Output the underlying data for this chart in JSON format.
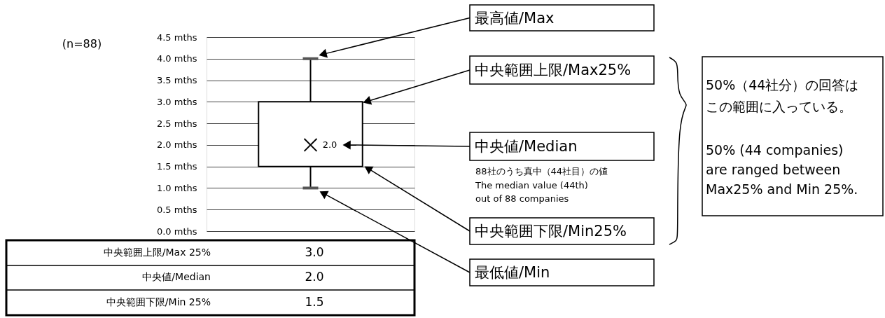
{
  "chart_data": {
    "type": "box",
    "categories": [
      null
    ],
    "boxes": [
      {
        "low": 1.0,
        "q1": 1.5,
        "median": 2.0,
        "q3": 3.0,
        "high": 4.0
      }
    ],
    "ylim": [
      0,
      4.5
    ],
    "yticks": [
      {
        "value": 0,
        "label": "0.0 mths"
      },
      {
        "value": 0.5,
        "label": "0.5 mths"
      },
      {
        "value": 1,
        "label": "1.0 mths"
      },
      {
        "value": 1.5,
        "label": "1.5 mths"
      },
      {
        "value": 2,
        "label": "2.0 mths"
      },
      {
        "value": 2.5,
        "label": "2.5 mths"
      },
      {
        "value": 3,
        "label": "3.0 mths"
      },
      {
        "value": 3.5,
        "label": "3.5 mths"
      },
      {
        "value": 4,
        "label": "4.0 mths"
      },
      {
        "value": 4.5,
        "label": "4.5 mths"
      }
    ],
    "grid": "y",
    "tick_labels": "y",
    "annotations": [
      "(n=88)",
      "2.0",
      "最高値/Max",
      "中央範囲上限/Max25%",
      "中央値/Median",
      "88社のうち真中（44社目）の値",
      "The median value (44th) out of 88 companies",
      "中央範囲下限/Min25%",
      "最低値/Min",
      "50%（44社分）の回答はこの範囲に入っている。",
      "50% (44 companies) are ranged between Max25% and Min 25%.",
      "中央範囲上限/Max 25%",
      "3.0",
      "中央値/Median",
      "2.0",
      "中央範囲下限/Min 25%",
      "1.5"
    ]
  }
}
